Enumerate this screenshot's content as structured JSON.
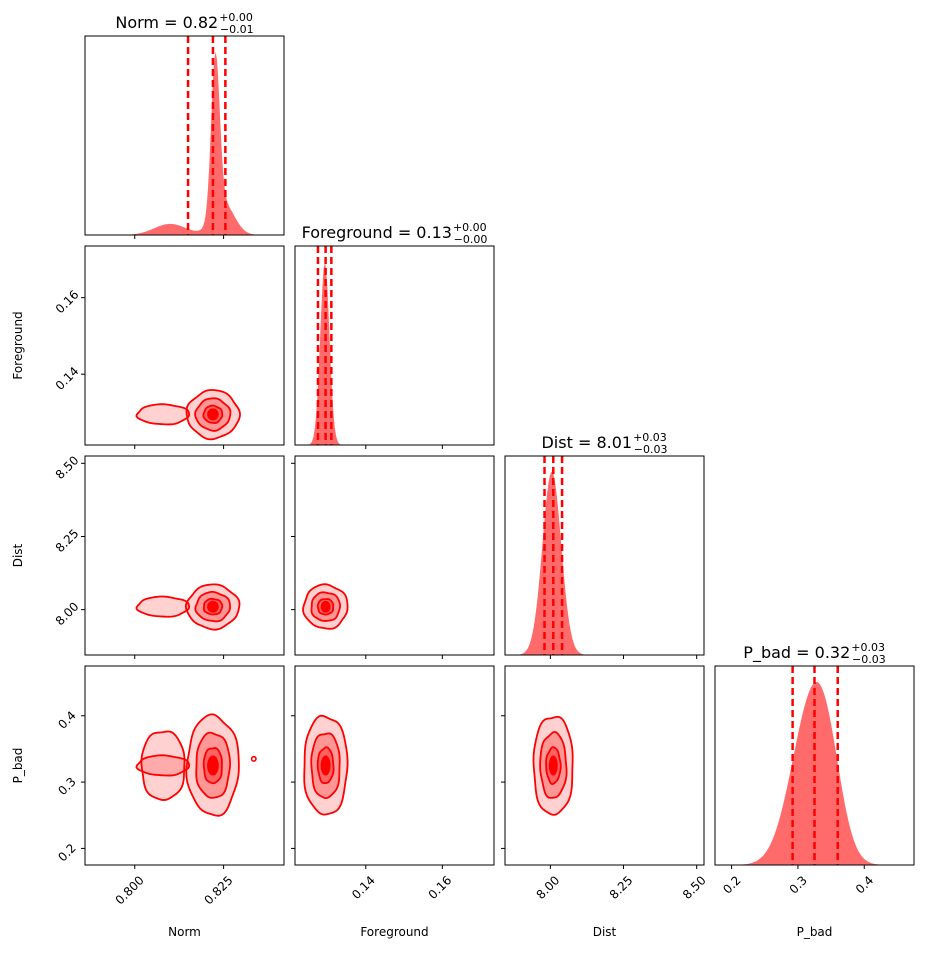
{
  "chart_data": {
    "type": "corner",
    "parameters": [
      "Norm",
      "Foreground",
      "Dist",
      "P_bad"
    ],
    "axis_labels": [
      "Norm",
      "Foreground",
      "Dist",
      "P_bad"
    ],
    "ranges": [
      [
        0.786,
        0.842
      ],
      [
        0.1215,
        0.1735
      ],
      [
        7.845,
        8.525
      ],
      [
        0.175,
        0.475
      ]
    ],
    "ticks": [
      [
        0.8,
        0.825
      ],
      [
        0.14,
        0.16
      ],
      [
        8.0,
        8.25,
        8.5
      ],
      [
        0.2,
        0.3,
        0.4
      ]
    ],
    "tick_labels": [
      [
        "0.800",
        "0.825"
      ],
      [
        "0.14",
        "0.16"
      ],
      [
        "8.00",
        "8.25",
        "8.50"
      ],
      [
        "0.2",
        "0.3",
        "0.4"
      ]
    ],
    "titles": [
      {
        "label": "Norm = 0.82",
        "sup": "+0.00",
        "sub": "−0.01"
      },
      {
        "label": "Foreground = 0.13",
        "sup": "+0.00",
        "sub": "−0.00"
      },
      {
        "label": "Dist = 8.01",
        "sup": "+0.03",
        "sub": "−0.03"
      },
      {
        "label": "P_bad = 0.32",
        "sup": "+0.03",
        "sub": "−0.03"
      }
    ],
    "quantiles": [
      [
        0.815,
        0.822,
        0.8255
      ],
      [
        0.1275,
        0.1295,
        0.131
      ],
      [
        7.98,
        8.01,
        8.04
      ],
      [
        0.292,
        0.325,
        0.36
      ]
    ],
    "marginals": [
      [
        {
          "mu": 0.8227,
          "sigma": 0.0012,
          "amp": 1.0
        },
        {
          "mu": 0.825,
          "sigma": 0.003,
          "amp": 0.2
        },
        {
          "mu": 0.81,
          "sigma": 0.0045,
          "amp": 0.07
        }
      ],
      [
        {
          "mu": 0.1293,
          "sigma": 0.0012,
          "amp": 1.0
        }
      ],
      [
        {
          "mu": 8.005,
          "sigma": 0.032,
          "amp": 1.0
        }
      ],
      [
        {
          "mu": 0.318,
          "sigma": 0.03,
          "amp": 0.75
        },
        {
          "mu": 0.345,
          "sigma": 0.022,
          "amp": 0.3
        }
      ]
    ],
    "color": "#ff0000",
    "fill_color": "#ff6b6b"
  }
}
